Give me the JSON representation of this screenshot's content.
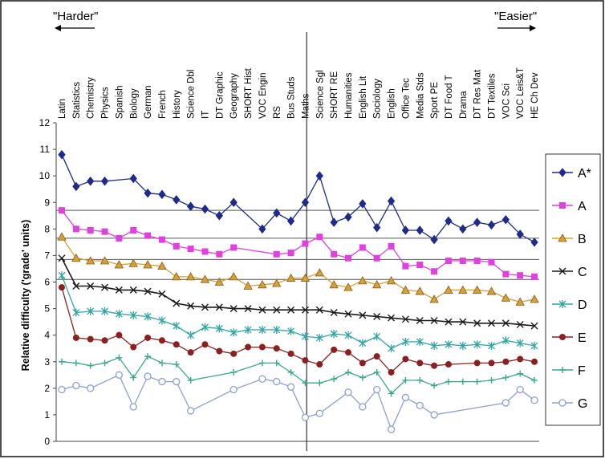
{
  "chart_data": {
    "type": "line",
    "ylabel": "Relative difficulty ('grade' units)",
    "ylim": [
      0,
      12
    ],
    "yticks": [
      "0",
      "1",
      "2",
      "3",
      "4",
      "5",
      "6",
      "7",
      "8",
      "9",
      "10",
      "11",
      "12"
    ],
    "annotations": {
      "left": "\"Harder\"",
      "right": "\"Easier\""
    },
    "legend_position": "right",
    "categories": [
      "Latin",
      "Statistics",
      "Chemistry",
      "Physics",
      "Spanish",
      "Biology",
      "German",
      "French",
      "History",
      "Science Dbl",
      "IT",
      "DT Graphic",
      "Geography",
      "SHORT Hist",
      "VOC Engin",
      "RS",
      "Bus Studs",
      "Maths",
      "Science Sgl",
      "SHORT RE",
      "Humanities",
      "English Lit",
      "Sociology",
      "English",
      "Office Tec",
      "Media Stds",
      "Sport PE",
      "DT Food T",
      "Drama",
      "DT Res Mat",
      "DT Textiles",
      "VOC Sci",
      "VOC Leis&T",
      "HE Ch Dev"
    ],
    "series": [
      {
        "name": "A*",
        "color": "#1f2a8c",
        "marker": "diamond",
        "values": [
          10.8,
          9.6,
          9.8,
          9.8,
          null,
          9.9,
          9.35,
          9.3,
          9.1,
          8.85,
          8.75,
          8.5,
          9.0,
          null,
          8.0,
          8.6,
          8.3,
          9.0,
          10.0,
          8.25,
          8.45,
          8.95,
          8.05,
          9.05,
          7.95,
          7.95,
          7.6,
          8.3,
          8.0,
          8.25,
          8.15,
          8.35,
          7.8,
          7.5
        ]
      },
      {
        "name": "A",
        "color": "#e23fe0",
        "marker": "square",
        "values": [
          8.7,
          8.0,
          7.95,
          7.9,
          7.65,
          7.95,
          7.75,
          7.6,
          7.35,
          7.25,
          7.15,
          7.05,
          7.3,
          null,
          null,
          7.05,
          7.1,
          7.45,
          7.7,
          7.05,
          6.9,
          7.3,
          6.9,
          7.35,
          6.6,
          6.65,
          6.4,
          6.8,
          6.8,
          6.8,
          6.75,
          6.3,
          6.25,
          6.2
        ]
      },
      {
        "name": "B",
        "color": "#d6a038",
        "marker": "triangle",
        "values": [
          7.7,
          6.9,
          6.8,
          6.8,
          6.65,
          6.7,
          6.65,
          6.6,
          6.2,
          6.2,
          6.1,
          6.0,
          6.2,
          5.85,
          5.9,
          5.95,
          6.15,
          6.15,
          6.35,
          5.9,
          5.8,
          6.05,
          5.9,
          6.05,
          5.7,
          5.65,
          5.35,
          5.7,
          5.7,
          5.7,
          5.65,
          5.4,
          5.25,
          5.35
        ]
      },
      {
        "name": "C",
        "color": "#1a1a1a",
        "marker": "x",
        "values": [
          6.9,
          5.85,
          5.85,
          5.8,
          5.7,
          5.7,
          5.65,
          5.55,
          5.2,
          5.1,
          5.05,
          5.05,
          5.0,
          5.0,
          4.95,
          4.95,
          4.95,
          4.95,
          4.95,
          4.85,
          4.8,
          4.75,
          4.7,
          4.65,
          4.6,
          4.55,
          4.55,
          4.5,
          4.5,
          4.45,
          4.45,
          4.45,
          4.4,
          4.35
        ]
      },
      {
        "name": "D",
        "color": "#2fa6a3",
        "marker": "star",
        "values": [
          6.25,
          4.85,
          4.9,
          4.9,
          4.8,
          4.75,
          4.7,
          4.55,
          4.35,
          4.0,
          4.3,
          4.25,
          4.1,
          4.2,
          4.2,
          4.2,
          4.15,
          3.95,
          3.9,
          4.05,
          4.0,
          3.7,
          3.95,
          3.5,
          3.75,
          3.75,
          3.6,
          3.65,
          3.6,
          3.65,
          3.6,
          3.8,
          3.7,
          3.6
        ]
      },
      {
        "name": "E",
        "color": "#8c1f1f",
        "marker": "circle",
        "values": [
          5.8,
          3.9,
          3.85,
          3.8,
          4.0,
          3.55,
          3.9,
          3.8,
          3.65,
          3.35,
          3.65,
          3.4,
          3.3,
          3.55,
          3.55,
          3.5,
          3.3,
          3.05,
          2.9,
          3.45,
          3.35,
          2.95,
          3.2,
          2.6,
          3.1,
          2.95,
          2.85,
          2.9,
          null,
          2.95,
          2.95,
          3.0,
          3.1,
          3.0
        ]
      },
      {
        "name": "F",
        "color": "#3aa88e",
        "marker": "plus",
        "values": [
          3.0,
          2.95,
          2.85,
          2.95,
          3.15,
          2.4,
          3.2,
          2.95,
          2.9,
          2.3,
          null,
          null,
          2.6,
          null,
          2.95,
          2.95,
          2.6,
          2.2,
          2.2,
          2.35,
          2.6,
          2.4,
          2.6,
          1.8,
          2.3,
          2.3,
          2.1,
          2.25,
          2.25,
          2.25,
          2.3,
          2.4,
          2.55,
          2.3
        ]
      },
      {
        "name": "G",
        "color": "#8e9fd6",
        "marker": "circle-open",
        "values": [
          1.95,
          2.1,
          2.0,
          null,
          2.5,
          1.3,
          2.45,
          2.25,
          2.25,
          1.15,
          null,
          null,
          1.95,
          null,
          2.35,
          2.25,
          2.05,
          0.9,
          1.05,
          null,
          1.85,
          1.3,
          1.95,
          0.45,
          1.65,
          1.35,
          1.0,
          null,
          null,
          null,
          null,
          1.45,
          1.95,
          1.55
        ]
      }
    ],
    "reference_lines_y": [
      8.7,
      7.65,
      6.85,
      6.1
    ],
    "divider_after_category": "Maths"
  }
}
